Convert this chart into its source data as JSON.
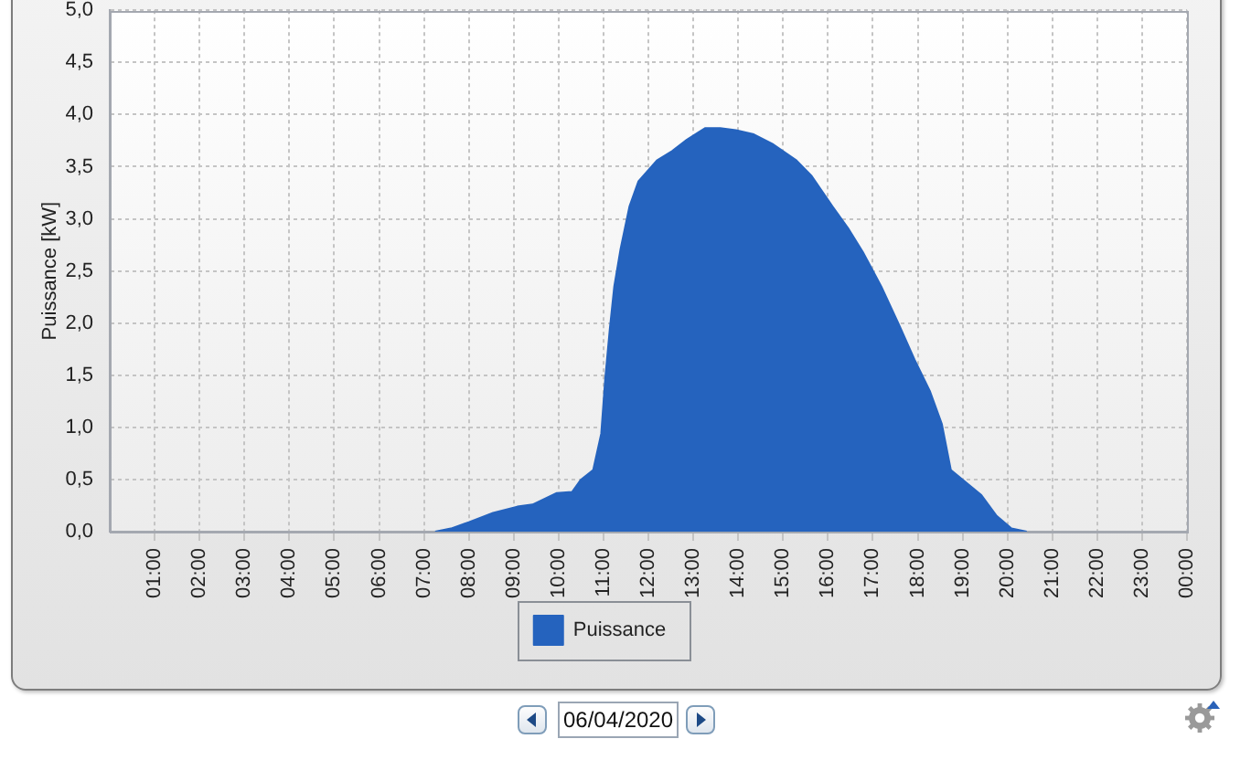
{
  "chart_data": {
    "type": "area",
    "ylabel": "Puissance [kW]",
    "x": [
      7.25,
      7.6,
      8.0,
      8.54,
      9.08,
      9.42,
      9.96,
      10.3,
      10.5,
      10.77,
      10.95,
      11.04,
      11.14,
      11.24,
      11.38,
      11.58,
      11.78,
      12.19,
      12.53,
      12.86,
      13.27,
      13.6,
      13.95,
      14.35,
      14.76,
      15.3,
      15.64,
      16.1,
      16.45,
      16.78,
      17.19,
      17.6,
      17.93,
      18.27,
      18.54,
      18.74,
      19.08,
      19.42,
      19.76,
      20.09,
      20.43
    ],
    "series": [
      {
        "name": "Puissance",
        "color": "#2563be",
        "values": [
          0,
          0.03,
          0.09,
          0.18,
          0.24,
          0.26,
          0.37,
          0.38,
          0.5,
          0.59,
          0.94,
          1.47,
          1.94,
          2.35,
          2.71,
          3.12,
          3.36,
          3.56,
          3.65,
          3.76,
          3.87,
          3.87,
          3.85,
          3.81,
          3.72,
          3.56,
          3.41,
          3.12,
          2.91,
          2.68,
          2.35,
          1.97,
          1.65,
          1.35,
          1.03,
          0.59,
          0.47,
          0.35,
          0.15,
          0.03,
          0
        ]
      }
    ],
    "xlim": [
      0,
      24
    ],
    "xticks": [
      {
        "value": 1,
        "label": "01:00"
      },
      {
        "value": 2,
        "label": "02:00"
      },
      {
        "value": 3,
        "label": "03:00"
      },
      {
        "value": 4,
        "label": "04:00"
      },
      {
        "value": 5,
        "label": "05:00"
      },
      {
        "value": 6,
        "label": "06:00"
      },
      {
        "value": 7,
        "label": "07:00"
      },
      {
        "value": 8,
        "label": "08:00"
      },
      {
        "value": 9,
        "label": "09:00"
      },
      {
        "value": 10,
        "label": "10:00"
      },
      {
        "value": 11,
        "label": "11:00"
      },
      {
        "value": 12,
        "label": "12:00"
      },
      {
        "value": 13,
        "label": "13:00"
      },
      {
        "value": 14,
        "label": "14:00"
      },
      {
        "value": 15,
        "label": "15:00"
      },
      {
        "value": 16,
        "label": "16:00"
      },
      {
        "value": 17,
        "label": "17:00"
      },
      {
        "value": 18,
        "label": "18:00"
      },
      {
        "value": 19,
        "label": "19:00"
      },
      {
        "value": 20,
        "label": "20:00"
      },
      {
        "value": 21,
        "label": "21:00"
      },
      {
        "value": 22,
        "label": "22:00"
      },
      {
        "value": 23,
        "label": "23:00"
      },
      {
        "value": 24,
        "label": "00:00"
      }
    ],
    "ylim": [
      0,
      5
    ],
    "yticks": [
      {
        "value": 0,
        "label": "0,0"
      },
      {
        "value": 0.5,
        "label": "0,5"
      },
      {
        "value": 1,
        "label": "1,0"
      },
      {
        "value": 1.5,
        "label": "1,5"
      },
      {
        "value": 2,
        "label": "2,0"
      },
      {
        "value": 2.5,
        "label": "2,5"
      },
      {
        "value": 3,
        "label": "3,0"
      },
      {
        "value": 3.5,
        "label": "3,5"
      },
      {
        "value": 4,
        "label": "4,0"
      },
      {
        "value": 4.5,
        "label": "4,5"
      },
      {
        "value": 5,
        "label": "5,0"
      }
    ],
    "grid": true,
    "legend": "bottom",
    "annotations": [
      "06/04/2020"
    ]
  }
}
